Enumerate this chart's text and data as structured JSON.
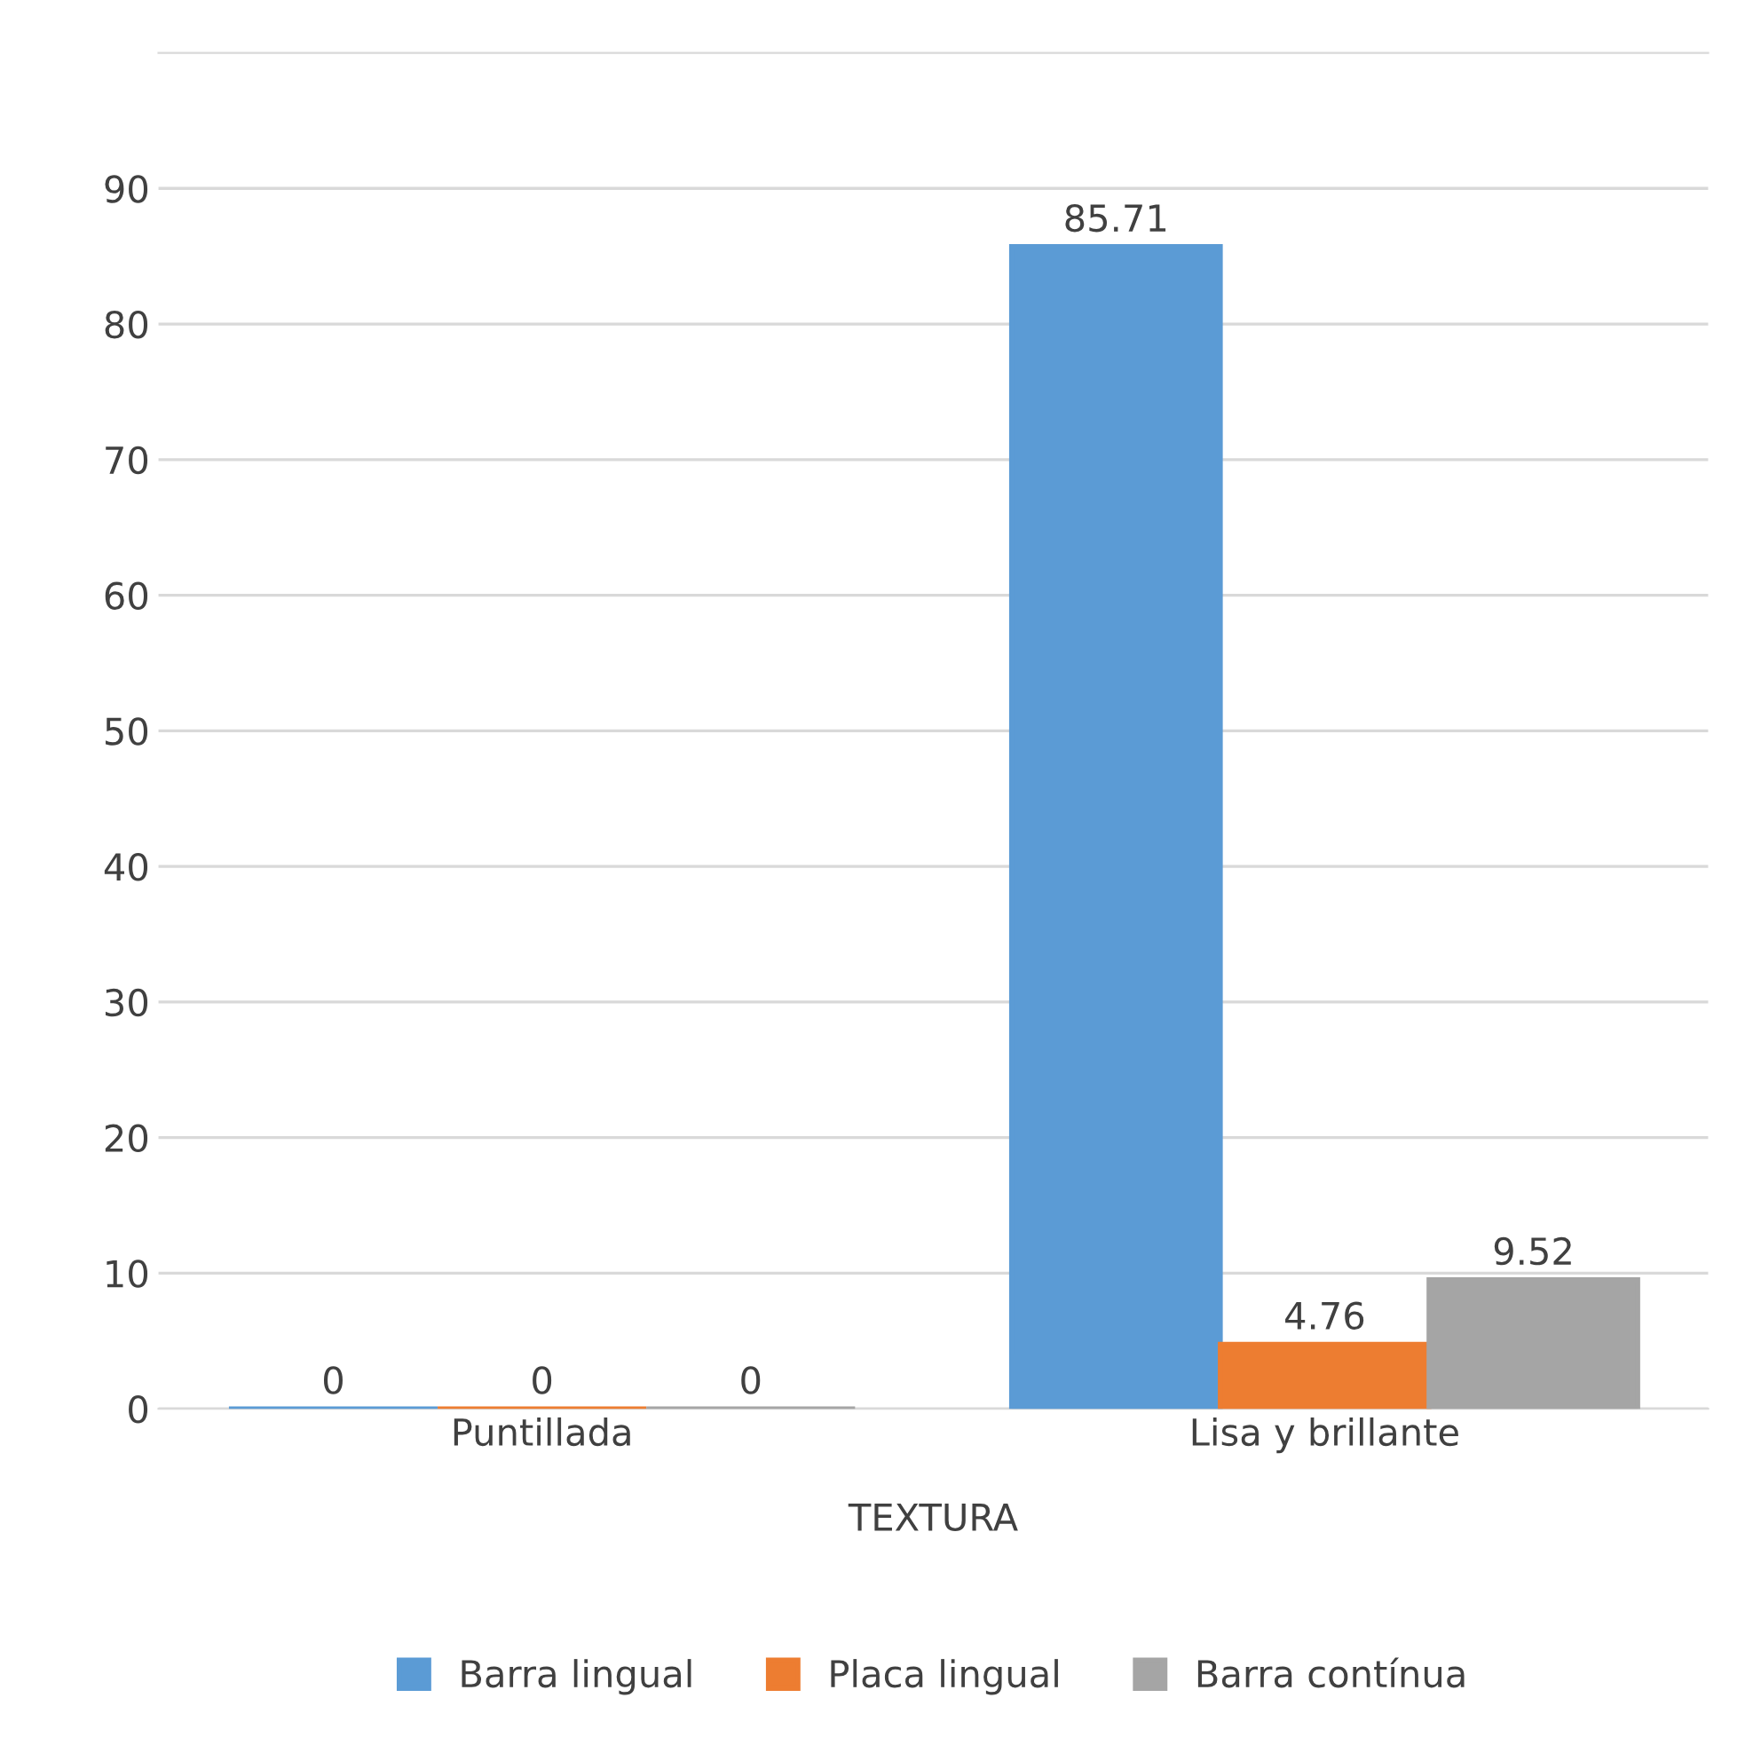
{
  "chart_data": {
    "type": "bar",
    "xlabel": "TEXTURA",
    "categories": [
      "Puntillada",
      "Lisa y brillante"
    ],
    "series": [
      {
        "name": "Barra lingual",
        "color": "#5b9bd5",
        "values": [
          0,
          85.71
        ]
      },
      {
        "name": "Placa lingual",
        "color": "#ed7d31",
        "values": [
          0,
          4.76
        ]
      },
      {
        "name": "Barra contínua",
        "color": "#a5a5a5",
        "values": [
          0,
          9.52
        ]
      }
    ],
    "ylim": [
      0,
      100
    ],
    "yticks": [
      0,
      10,
      20,
      30,
      40,
      50,
      60,
      70,
      80,
      90
    ],
    "grid": "y",
    "legend": "bottom",
    "data_labels": true
  }
}
